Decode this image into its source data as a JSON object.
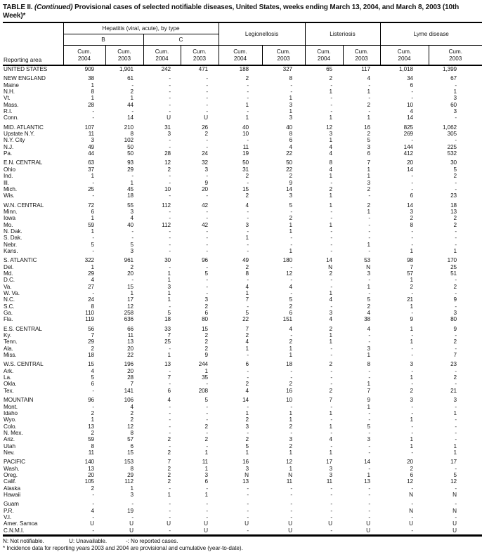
{
  "title": {
    "table_label": "TABLE II.",
    "continued": "(Continued)",
    "rest": "Provisional cases of selected notifiable diseases, United States, weeks ending March 13, 2004, and March 8, 2003 (10th Week)*"
  },
  "header": {
    "reporting_area_label": "Reporting area",
    "hepatitis_group": "Hepatitis (viral, acute), by type",
    "hepatitis_sub": [
      "B",
      "C"
    ],
    "groups": [
      "Legionellosis",
      "Listeriosis",
      "Lyme disease"
    ],
    "cum_label": "Cum.",
    "years": [
      "2004",
      "2003"
    ]
  },
  "rows": [
    {
      "area": "UNITED STATES",
      "kind": "total",
      "gap": false,
      "values": [
        "909",
        "1,901",
        "242",
        "471",
        "188",
        "327",
        "65",
        "117",
        "1,018",
        "1,399"
      ]
    },
    {
      "area": "NEW ENGLAND",
      "kind": "region",
      "gap": true,
      "values": [
        "38",
        "61",
        "-",
        "-",
        "2",
        "8",
        "2",
        "4",
        "34",
        "67"
      ]
    },
    {
      "area": "Maine",
      "kind": "state",
      "gap": false,
      "values": [
        "1",
        "-",
        "-",
        "-",
        "-",
        "-",
        "-",
        "-",
        "6",
        "-"
      ]
    },
    {
      "area": "N.H.",
      "kind": "state",
      "gap": false,
      "values": [
        "8",
        "2",
        "-",
        "-",
        "-",
        "-",
        "1",
        "1",
        "-",
        "1"
      ]
    },
    {
      "area": "Vt.",
      "kind": "state",
      "gap": false,
      "values": [
        "1",
        "1",
        "-",
        "-",
        "-",
        "1",
        "-",
        "-",
        "-",
        "3"
      ]
    },
    {
      "area": "Mass.",
      "kind": "state",
      "gap": false,
      "values": [
        "28",
        "44",
        "-",
        "-",
        "1",
        "3",
        "-",
        "2",
        "10",
        "60"
      ]
    },
    {
      "area": "R.I.",
      "kind": "state",
      "gap": false,
      "values": [
        "-",
        "-",
        "-",
        "-",
        "-",
        "1",
        "-",
        "-",
        "4",
        "3"
      ]
    },
    {
      "area": "Conn.",
      "kind": "state",
      "gap": false,
      "values": [
        "-",
        "14",
        "U",
        "U",
        "1",
        "3",
        "1",
        "1",
        "14",
        "-"
      ]
    },
    {
      "area": "MID. ATLANTIC",
      "kind": "region",
      "gap": true,
      "values": [
        "107",
        "210",
        "31",
        "26",
        "40",
        "40",
        "12",
        "16",
        "825",
        "1,062"
      ]
    },
    {
      "area": "Upstate N.Y.",
      "kind": "state",
      "gap": false,
      "values": [
        "11",
        "8",
        "3",
        "2",
        "10",
        "8",
        "3",
        "2",
        "269",
        "305"
      ]
    },
    {
      "area": "N.Y. City",
      "kind": "state",
      "gap": false,
      "values": [
        "3",
        "102",
        "-",
        "-",
        "-",
        "6",
        "1",
        "5",
        "-",
        "-"
      ]
    },
    {
      "area": "N.J.",
      "kind": "state",
      "gap": false,
      "values": [
        "49",
        "50",
        "-",
        "-",
        "11",
        "4",
        "4",
        "3",
        "144",
        "225"
      ]
    },
    {
      "area": "Pa.",
      "kind": "state",
      "gap": false,
      "values": [
        "44",
        "50",
        "28",
        "24",
        "19",
        "22",
        "4",
        "6",
        "412",
        "532"
      ]
    },
    {
      "area": "E.N. CENTRAL",
      "kind": "region",
      "gap": true,
      "values": [
        "63",
        "93",
        "12",
        "32",
        "50",
        "50",
        "8",
        "7",
        "20",
        "30"
      ]
    },
    {
      "area": "Ohio",
      "kind": "state",
      "gap": false,
      "values": [
        "37",
        "29",
        "2",
        "3",
        "31",
        "22",
        "4",
        "1",
        "14",
        "5"
      ]
    },
    {
      "area": "Ind.",
      "kind": "state",
      "gap": false,
      "values": [
        "1",
        "-",
        "-",
        "-",
        "2",
        "2",
        "1",
        "1",
        "-",
        "2"
      ]
    },
    {
      "area": "Ill.",
      "kind": "state",
      "gap": false,
      "values": [
        "-",
        "1",
        "-",
        "9",
        "-",
        "9",
        "-",
        "3",
        "-",
        "-"
      ]
    },
    {
      "area": "Mich.",
      "kind": "state",
      "gap": false,
      "values": [
        "25",
        "45",
        "10",
        "20",
        "15",
        "14",
        "2",
        "2",
        "-",
        "-"
      ]
    },
    {
      "area": "Wis.",
      "kind": "state",
      "gap": false,
      "values": [
        "-",
        "18",
        "-",
        "-",
        "2",
        "3",
        "1",
        "-",
        "6",
        "23"
      ]
    },
    {
      "area": "W.N. CENTRAL",
      "kind": "region",
      "gap": true,
      "values": [
        "72",
        "55",
        "112",
        "42",
        "4",
        "5",
        "1",
        "2",
        "14",
        "18"
      ]
    },
    {
      "area": "Minn.",
      "kind": "state",
      "gap": false,
      "values": [
        "6",
        "3",
        "-",
        "-",
        "-",
        "-",
        "-",
        "1",
        "3",
        "13"
      ]
    },
    {
      "area": "Iowa",
      "kind": "state",
      "gap": false,
      "values": [
        "1",
        "4",
        "-",
        "-",
        "-",
        "2",
        "-",
        "-",
        "2",
        "2"
      ]
    },
    {
      "area": "Mo.",
      "kind": "state",
      "gap": false,
      "values": [
        "59",
        "40",
        "112",
        "42",
        "3",
        "1",
        "1",
        "-",
        "8",
        "2"
      ]
    },
    {
      "area": "N. Dak.",
      "kind": "state",
      "gap": false,
      "values": [
        "1",
        "-",
        "-",
        "-",
        "-",
        "1",
        "-",
        "-",
        "-",
        "-"
      ]
    },
    {
      "area": "S. Dak.",
      "kind": "state",
      "gap": false,
      "values": [
        "-",
        "-",
        "-",
        "-",
        "1",
        "-",
        "-",
        "-",
        "-",
        "-"
      ]
    },
    {
      "area": "Nebr.",
      "kind": "state",
      "gap": false,
      "values": [
        "5",
        "5",
        "-",
        "-",
        "-",
        "-",
        "-",
        "1",
        "-",
        "-"
      ]
    },
    {
      "area": "Kans.",
      "kind": "state",
      "gap": false,
      "values": [
        "-",
        "3",
        "-",
        "-",
        "-",
        "1",
        "-",
        "-",
        "1",
        "1"
      ]
    },
    {
      "area": "S. ATLANTIC",
      "kind": "region",
      "gap": true,
      "values": [
        "322",
        "961",
        "30",
        "96",
        "49",
        "180",
        "14",
        "53",
        "98",
        "170"
      ]
    },
    {
      "area": "Del.",
      "kind": "state",
      "gap": false,
      "values": [
        "1",
        "2",
        "-",
        "-",
        "2",
        "-",
        "N",
        "N",
        "7",
        "25"
      ]
    },
    {
      "area": "Md.",
      "kind": "state",
      "gap": false,
      "values": [
        "29",
        "20",
        "1",
        "5",
        "8",
        "12",
        "2",
        "3",
        "57",
        "51"
      ]
    },
    {
      "area": "D.C.",
      "kind": "state",
      "gap": false,
      "values": [
        "4",
        "-",
        "1",
        "-",
        "-",
        "-",
        "-",
        "-",
        "1",
        "-"
      ]
    },
    {
      "area": "Va.",
      "kind": "state",
      "gap": false,
      "values": [
        "27",
        "15",
        "3",
        "-",
        "4",
        "4",
        "-",
        "1",
        "2",
        "2"
      ]
    },
    {
      "area": "W. Va.",
      "kind": "state",
      "gap": false,
      "values": [
        "-",
        "1",
        "1",
        "-",
        "1",
        "-",
        "1",
        "-",
        "-",
        "-"
      ]
    },
    {
      "area": "N.C.",
      "kind": "state",
      "gap": false,
      "values": [
        "24",
        "17",
        "1",
        "3",
        "7",
        "5",
        "4",
        "5",
        "21",
        "9"
      ]
    },
    {
      "area": "S.C.",
      "kind": "state",
      "gap": false,
      "values": [
        "8",
        "12",
        "-",
        "2",
        "-",
        "2",
        "-",
        "2",
        "1",
        "-"
      ]
    },
    {
      "area": "Ga.",
      "kind": "state",
      "gap": false,
      "values": [
        "110",
        "258",
        "5",
        "6",
        "5",
        "6",
        "3",
        "4",
        "-",
        "3"
      ]
    },
    {
      "area": "Fla.",
      "kind": "state",
      "gap": false,
      "values": [
        "119",
        "636",
        "18",
        "80",
        "22",
        "151",
        "4",
        "38",
        "9",
        "80"
      ]
    },
    {
      "area": "E.S. CENTRAL",
      "kind": "region",
      "gap": true,
      "values": [
        "56",
        "66",
        "33",
        "15",
        "7",
        "4",
        "2",
        "4",
        "1",
        "9"
      ]
    },
    {
      "area": "Ky.",
      "kind": "state",
      "gap": false,
      "values": [
        "7",
        "11",
        "7",
        "2",
        "2",
        "-",
        "1",
        "-",
        "-",
        "-"
      ]
    },
    {
      "area": "Tenn.",
      "kind": "state",
      "gap": false,
      "values": [
        "29",
        "13",
        "25",
        "2",
        "4",
        "2",
        "1",
        "-",
        "1",
        "2"
      ]
    },
    {
      "area": "Ala.",
      "kind": "state",
      "gap": false,
      "values": [
        "2",
        "20",
        "-",
        "2",
        "1",
        "1",
        "-",
        "3",
        "-",
        "-"
      ]
    },
    {
      "area": "Miss.",
      "kind": "state",
      "gap": false,
      "values": [
        "18",
        "22",
        "1",
        "9",
        "-",
        "1",
        "-",
        "1",
        "-",
        "7"
      ]
    },
    {
      "area": "W.S. CENTRAL",
      "kind": "region",
      "gap": true,
      "values": [
        "15",
        "196",
        "13",
        "244",
        "6",
        "18",
        "2",
        "8",
        "3",
        "23"
      ]
    },
    {
      "area": "Ark.",
      "kind": "state",
      "gap": false,
      "values": [
        "4",
        "20",
        "-",
        "1",
        "-",
        "-",
        "-",
        "-",
        "-",
        "-"
      ]
    },
    {
      "area": "La.",
      "kind": "state",
      "gap": false,
      "values": [
        "5",
        "28",
        "7",
        "35",
        "-",
        "-",
        "-",
        "-",
        "1",
        "2"
      ]
    },
    {
      "area": "Okla.",
      "kind": "state",
      "gap": false,
      "values": [
        "6",
        "7",
        "-",
        "-",
        "2",
        "2",
        "-",
        "1",
        "-",
        "-"
      ]
    },
    {
      "area": "Tex.",
      "kind": "state",
      "gap": false,
      "values": [
        "-",
        "141",
        "6",
        "208",
        "4",
        "16",
        "2",
        "7",
        "2",
        "21"
      ]
    },
    {
      "area": "MOUNTAIN",
      "kind": "region",
      "gap": true,
      "values": [
        "96",
        "106",
        "4",
        "5",
        "14",
        "10",
        "7",
        "9",
        "3",
        "3"
      ]
    },
    {
      "area": "Mont.",
      "kind": "state",
      "gap": false,
      "values": [
        "-",
        "4",
        "-",
        "-",
        "-",
        "-",
        "-",
        "1",
        "-",
        "-"
      ]
    },
    {
      "area": "Idaho",
      "kind": "state",
      "gap": false,
      "values": [
        "2",
        "2",
        "-",
        "-",
        "1",
        "1",
        "1",
        "-",
        "-",
        "1"
      ]
    },
    {
      "area": "Wyo.",
      "kind": "state",
      "gap": false,
      "values": [
        "1",
        "2",
        "-",
        "-",
        "2",
        "1",
        "-",
        "-",
        "1",
        "-"
      ]
    },
    {
      "area": "Colo.",
      "kind": "state",
      "gap": false,
      "values": [
        "13",
        "12",
        "-",
        "2",
        "3",
        "2",
        "1",
        "5",
        "-",
        "-"
      ]
    },
    {
      "area": "N. Mex.",
      "kind": "state",
      "gap": false,
      "values": [
        "2",
        "8",
        "-",
        "-",
        "-",
        "-",
        "-",
        "-",
        "-",
        "-"
      ]
    },
    {
      "area": "Ariz.",
      "kind": "state",
      "gap": false,
      "values": [
        "59",
        "57",
        "2",
        "2",
        "2",
        "3",
        "4",
        "3",
        "1",
        "-"
      ]
    },
    {
      "area": "Utah",
      "kind": "state",
      "gap": false,
      "values": [
        "8",
        "6",
        "-",
        "-",
        "5",
        "2",
        "-",
        "-",
        "1",
        "1"
      ]
    },
    {
      "area": "Nev.",
      "kind": "state",
      "gap": false,
      "values": [
        "11",
        "15",
        "2",
        "1",
        "1",
        "1",
        "1",
        "-",
        "-",
        "1"
      ]
    },
    {
      "area": "PACIFIC",
      "kind": "region",
      "gap": true,
      "values": [
        "140",
        "153",
        "7",
        "11",
        "16",
        "12",
        "17",
        "14",
        "20",
        "17"
      ]
    },
    {
      "area": "Wash.",
      "kind": "state",
      "gap": false,
      "values": [
        "13",
        "8",
        "2",
        "1",
        "3",
        "1",
        "3",
        "-",
        "2",
        "-"
      ]
    },
    {
      "area": "Oreg.",
      "kind": "state",
      "gap": false,
      "values": [
        "20",
        "29",
        "2",
        "3",
        "N",
        "N",
        "3",
        "1",
        "6",
        "5"
      ]
    },
    {
      "area": "Calif.",
      "kind": "state",
      "gap": false,
      "values": [
        "105",
        "112",
        "2",
        "6",
        "13",
        "11",
        "11",
        "13",
        "12",
        "12"
      ]
    },
    {
      "area": "Alaska",
      "kind": "state",
      "gap": false,
      "values": [
        "2",
        "1",
        "-",
        "-",
        "-",
        "-",
        "-",
        "-",
        "-",
        "-"
      ]
    },
    {
      "area": "Hawaii",
      "kind": "state",
      "gap": false,
      "values": [
        "-",
        "3",
        "1",
        "1",
        "-",
        "-",
        "-",
        "-",
        "N",
        "N"
      ]
    },
    {
      "area": "Guam",
      "kind": "territory",
      "gap": true,
      "values": [
        "-",
        "-",
        "-",
        "-",
        "-",
        "-",
        "-",
        "-",
        "-",
        "-"
      ]
    },
    {
      "area": "P.R.",
      "kind": "territory",
      "gap": false,
      "values": [
        "4",
        "19",
        "-",
        "-",
        "-",
        "-",
        "-",
        "-",
        "N",
        "N"
      ]
    },
    {
      "area": "V.I.",
      "kind": "territory",
      "gap": false,
      "values": [
        "-",
        "-",
        "-",
        "-",
        "-",
        "-",
        "-",
        "-",
        "-",
        "-"
      ]
    },
    {
      "area": "Amer. Samoa",
      "kind": "territory",
      "gap": false,
      "values": [
        "U",
        "U",
        "U",
        "U",
        "U",
        "U",
        "U",
        "U",
        "U",
        "U"
      ]
    },
    {
      "area": "C.N.M.I.",
      "kind": "territory",
      "gap": false,
      "values": [
        "-",
        "U",
        "-",
        "U",
        "-",
        "U",
        "-",
        "U",
        "-",
        "U"
      ]
    }
  ],
  "footnotes": {
    "legend": [
      "N: Not notifiable.",
      "U: Unavailable.",
      "-: No reported cases."
    ],
    "asterisk": "* Incidence data for reporting years 2003 and 2004 are provisional and cumulative (year-to-date)."
  }
}
